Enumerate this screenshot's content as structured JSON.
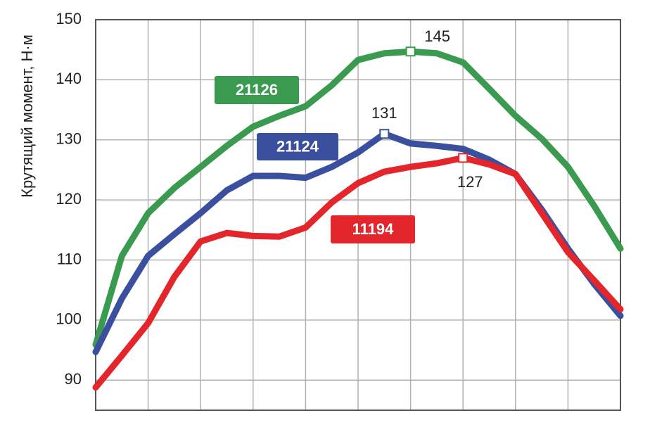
{
  "chart_data": {
    "type": "line",
    "y_label": "Крутящий момент, Н·м",
    "categories": [
      null,
      null,
      null,
      null,
      null,
      null,
      null,
      null,
      null,
      null,
      null,
      null,
      null,
      null,
      null,
      null,
      null,
      null,
      null,
      null,
      null
    ],
    "series": [
      {
        "name": "21126",
        "color": "#3a9a50",
        "values": [
          95.9,
          110.7,
          117.8,
          122,
          125.5,
          129,
          132.2,
          134,
          135.6,
          139.1,
          143.3,
          144.4,
          144.7,
          144.4,
          142.9,
          138.5,
          134,
          130.2,
          125.5,
          119,
          111.9
        ],
        "value_labels": [
          null,
          null,
          null,
          null,
          null,
          null,
          null,
          null,
          null,
          null,
          null,
          null,
          "145",
          null,
          null,
          null,
          null,
          null,
          null,
          null,
          null
        ]
      },
      {
        "name": "21124",
        "color": "#3b4f9f",
        "values": [
          94.7,
          103.6,
          110.7,
          114.3,
          117.8,
          121.6,
          124,
          124,
          123.7,
          125.5,
          127.9,
          131,
          129.4,
          129,
          128.5,
          126.7,
          124.3,
          118.4,
          111.9,
          106,
          100.7
        ],
        "value_labels": [
          null,
          null,
          null,
          null,
          null,
          null,
          null,
          null,
          null,
          null,
          null,
          "131",
          null,
          null,
          null,
          null,
          null,
          null,
          null,
          null,
          null
        ]
      },
      {
        "name": "11194",
        "color": "#e3262b",
        "values": [
          88.8,
          94.1,
          99.5,
          107.2,
          113.1,
          114.5,
          114,
          113.9,
          115.4,
          119.6,
          122.8,
          124.7,
          125.5,
          126.1,
          127,
          125.9,
          124.3,
          117.8,
          111.3,
          106.6,
          101.8
        ],
        "value_labels": [
          null,
          null,
          null,
          null,
          null,
          null,
          null,
          null,
          null,
          null,
          null,
          null,
          null,
          null,
          "127",
          null,
          null,
          null,
          null,
          null,
          null
        ]
      }
    ],
    "ylim": [
      85,
      150
    ],
    "yticks": [
      90,
      100,
      110,
      120,
      130,
      140,
      150
    ],
    "grid": true
  }
}
